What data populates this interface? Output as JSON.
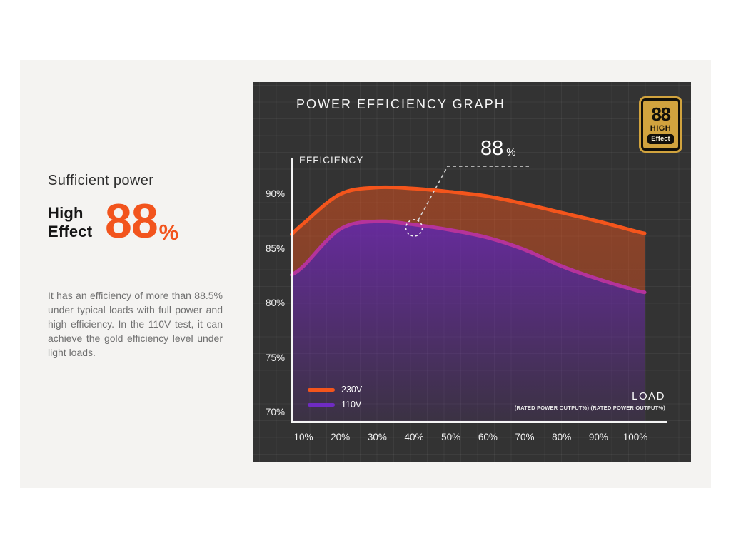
{
  "left_panel": {
    "heading": "Sufficient power",
    "highlight_line1": "High",
    "highlight_line2": "Effect",
    "highlight_value": "88",
    "highlight_unit": "%",
    "description": "It has an efficiency of more than 88.5% under typical loads with full power and high efficiency. In the 110V test, it can achieve the gold efficiency level under light loads."
  },
  "chart_panel": {
    "title": "POWER EFFICIENCY GRAPH",
    "badge": {
      "number": "88",
      "line1": "HIGH",
      "line2": "Effect"
    },
    "y_axis_label": "EFFICIENCY",
    "x_axis_label": "LOAD",
    "x_axis_sublabel": "(RATED POWER OUTPUT%) (RATED POWER OUTPUT%)",
    "y_ticks": [
      "90%",
      "85%",
      "80%",
      "75%",
      "70%"
    ],
    "x_ticks": [
      "10%",
      "20%",
      "30%",
      "40%",
      "50%",
      "60%",
      "70%",
      "80%",
      "90%",
      "100%"
    ],
    "legend": [
      {
        "label": "230V",
        "color": "#F4551C"
      },
      {
        "label": "110V",
        "color": "#6F2BC2"
      }
    ],
    "annotation": {
      "value": "88",
      "unit": "%"
    }
  },
  "colors": {
    "accent_orange": "#F2541D",
    "line_230v": "#F4551C",
    "line_110v": "#B5339B",
    "fill_110v": "#7229B4",
    "panel_bg": "#333333",
    "card_bg": "#f4f3f1",
    "badge_gold": "#D1A33E"
  },
  "chart_data": {
    "type": "area",
    "title": "POWER EFFICIENCY GRAPH",
    "xlabel": "LOAD (RATED POWER OUTPUT%)",
    "ylabel": "EFFICIENCY",
    "x_ticks_percent": [
      10,
      20,
      30,
      40,
      50,
      60,
      70,
      80,
      90,
      100
    ],
    "y_ticks_percent": [
      90,
      85,
      80,
      75,
      70
    ],
    "ylim": [
      70,
      92
    ],
    "grid": true,
    "legend_position": "bottom-left",
    "series": [
      {
        "name": "230V",
        "line_color": "#F4551C",
        "values": [
          87.3,
          90.0,
          90.6,
          90.5,
          90.2,
          89.8,
          89.1,
          88.3,
          87.5,
          86.6
        ],
        "start_value": 86.3,
        "end_value": 86.4
      },
      {
        "name": "110V",
        "line_color": "#B5339B",
        "values": [
          83.4,
          86.8,
          87.5,
          87.2,
          86.7,
          86.0,
          84.9,
          83.4,
          82.2,
          81.2
        ],
        "start_value": 82.6,
        "end_value": 81.0
      }
    ],
    "annotation": {
      "label": "88 %",
      "attached_series": "110V",
      "point": {
        "load": 40,
        "value": 86.9
      }
    }
  }
}
